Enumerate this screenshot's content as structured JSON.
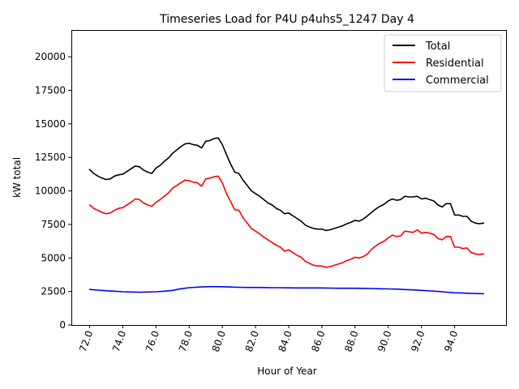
{
  "chart_data": {
    "type": "line",
    "title": "Timeseries Load for P4U p4uhs5_1247  Day 4",
    "xlabel": "Hour of Year",
    "ylabel": "kW total",
    "xlim": [
      70.9,
      97.1
    ],
    "ylim": [
      0,
      22000
    ],
    "xticks": [
      72,
      74,
      76,
      78,
      80,
      82,
      84,
      86,
      88,
      90,
      92,
      94
    ],
    "xtick_labels": [
      "72.0",
      "74.0",
      "76.0",
      "78.0",
      "80.0",
      "82.0",
      "84.0",
      "86.0",
      "88.0",
      "90.0",
      "92.0",
      "94.0"
    ],
    "yticks": [
      0,
      2500,
      5000,
      7500,
      10000,
      12500,
      15000,
      17500,
      20000
    ],
    "ytick_labels": [
      "0",
      "2500",
      "5000",
      "7500",
      "10000",
      "12500",
      "15000",
      "17500",
      "20000"
    ],
    "grid": false,
    "legend_position": "top-right",
    "series": [
      {
        "name": "Total",
        "color": "#000000",
        "x": [
          72,
          72.25,
          72.5,
          72.75,
          73,
          73.25,
          73.5,
          73.75,
          74,
          74.25,
          74.5,
          74.75,
          75,
          75.25,
          75.5,
          75.75,
          76,
          76.25,
          76.5,
          76.75,
          77,
          77.25,
          77.5,
          77.75,
          78,
          78.25,
          78.5,
          78.75,
          79,
          79.25,
          79.5,
          79.75,
          80,
          80.25,
          80.5,
          80.75,
          81,
          81.25,
          81.5,
          81.75,
          82,
          82.25,
          82.5,
          82.75,
          83,
          83.25,
          83.5,
          83.75,
          84,
          84.25,
          84.5,
          84.75,
          85,
          85.25,
          85.5,
          85.75,
          86,
          86.25,
          86.5,
          86.75,
          87,
          87.25,
          87.5,
          87.75,
          88,
          88.25,
          88.5,
          88.75,
          89,
          89.25,
          89.5,
          89.75,
          90,
          90.25,
          90.5,
          90.75,
          91,
          91.25,
          91.5,
          91.75,
          92,
          92.25,
          92.5,
          92.75,
          93,
          93.25,
          93.5,
          93.75,
          94,
          94.25,
          94.5,
          94.75,
          95,
          95.25,
          95.5,
          95.75
        ],
        "values": [
          11600,
          11300,
          11100,
          10950,
          10850,
          10900,
          11100,
          11200,
          11250,
          11450,
          11650,
          11850,
          11800,
          11550,
          11400,
          11300,
          11700,
          11900,
          12200,
          12450,
          12800,
          13050,
          13300,
          13500,
          13550,
          13450,
          13400,
          13200,
          13700,
          13750,
          13900,
          13950,
          13450,
          12700,
          12000,
          11400,
          11300,
          10800,
          10400,
          10000,
          9800,
          9600,
          9350,
          9100,
          8950,
          8700,
          8550,
          8300,
          8350,
          8150,
          7950,
          7750,
          7450,
          7300,
          7200,
          7150,
          7150,
          7050,
          7100,
          7200,
          7300,
          7400,
          7550,
          7650,
          7800,
          7750,
          7900,
          8150,
          8400,
          8650,
          8850,
          9000,
          9250,
          9400,
          9300,
          9350,
          9600,
          9550,
          9550,
          9600,
          9400,
          9450,
          9350,
          9250,
          8950,
          8800,
          9050,
          9050,
          8200,
          8200,
          8100,
          8100,
          7750,
          7600,
          7550,
          7600
        ]
      },
      {
        "name": "Residential",
        "color": "#ff0000",
        "x": [
          72,
          72.25,
          72.5,
          72.75,
          73,
          73.25,
          73.5,
          73.75,
          74,
          74.25,
          74.5,
          74.75,
          75,
          75.25,
          75.5,
          75.75,
          76,
          76.25,
          76.5,
          76.75,
          77,
          77.25,
          77.5,
          77.75,
          78,
          78.25,
          78.5,
          78.75,
          79,
          79.25,
          79.5,
          79.75,
          80,
          80.25,
          80.5,
          80.75,
          81,
          81.25,
          81.5,
          81.75,
          82,
          82.25,
          82.5,
          82.75,
          83,
          83.25,
          83.5,
          83.75,
          84,
          84.25,
          84.5,
          84.75,
          85,
          85.25,
          85.5,
          85.75,
          86,
          86.25,
          86.5,
          86.75,
          87,
          87.25,
          87.5,
          87.75,
          88,
          88.25,
          88.5,
          88.75,
          89,
          89.25,
          89.5,
          89.75,
          90,
          90.25,
          90.5,
          90.75,
          91,
          91.25,
          91.5,
          91.75,
          92,
          92.25,
          92.5,
          92.75,
          93,
          93.25,
          93.5,
          93.75,
          94,
          94.25,
          94.5,
          94.75,
          95,
          95.25,
          95.5,
          95.75
        ],
        "values": [
          8950,
          8700,
          8550,
          8400,
          8300,
          8350,
          8550,
          8700,
          8750,
          8950,
          9150,
          9400,
          9350,
          9100,
          8950,
          8850,
          9150,
          9350,
          9600,
          9850,
          10200,
          10400,
          10600,
          10800,
          10750,
          10650,
          10600,
          10350,
          10900,
          10950,
          11050,
          11100,
          10600,
          9800,
          9200,
          8600,
          8550,
          8000,
          7600,
          7200,
          7000,
          6800,
          6550,
          6350,
          6150,
          5950,
          5800,
          5500,
          5600,
          5400,
          5200,
          5050,
          4750,
          4600,
          4450,
          4400,
          4400,
          4300,
          4350,
          4450,
          4550,
          4650,
          4800,
          4900,
          5050,
          5000,
          5100,
          5300,
          5650,
          5900,
          6100,
          6250,
          6500,
          6700,
          6600,
          6650,
          7000,
          6950,
          6900,
          7100,
          6850,
          6900,
          6850,
          6750,
          6450,
          6350,
          6600,
          6600,
          5800,
          5800,
          5700,
          5750,
          5400,
          5300,
          5250,
          5300
        ]
      },
      {
        "name": "Commercial",
        "color": "#0000ff",
        "x": [
          72,
          72.5,
          73,
          73.5,
          74,
          74.5,
          75,
          75.5,
          76,
          76.5,
          77,
          77.5,
          78,
          78.5,
          79,
          79.5,
          80,
          80.5,
          81,
          81.5,
          82,
          82.5,
          83,
          83.5,
          84,
          84.5,
          85,
          85.5,
          86,
          86.5,
          87,
          87.5,
          88,
          88.5,
          89,
          89.5,
          90,
          90.5,
          91,
          91.5,
          92,
          92.5,
          93,
          93.5,
          94,
          94.5,
          95,
          95.5,
          95.75
        ],
        "values": [
          2650,
          2600,
          2550,
          2520,
          2480,
          2460,
          2440,
          2460,
          2480,
          2520,
          2580,
          2700,
          2780,
          2820,
          2850,
          2860,
          2850,
          2830,
          2810,
          2800,
          2800,
          2790,
          2780,
          2780,
          2770,
          2760,
          2760,
          2760,
          2760,
          2750,
          2740,
          2740,
          2740,
          2730,
          2720,
          2700,
          2690,
          2680,
          2640,
          2620,
          2580,
          2540,
          2500,
          2450,
          2400,
          2380,
          2350,
          2340,
          2330
        ]
      }
    ]
  }
}
